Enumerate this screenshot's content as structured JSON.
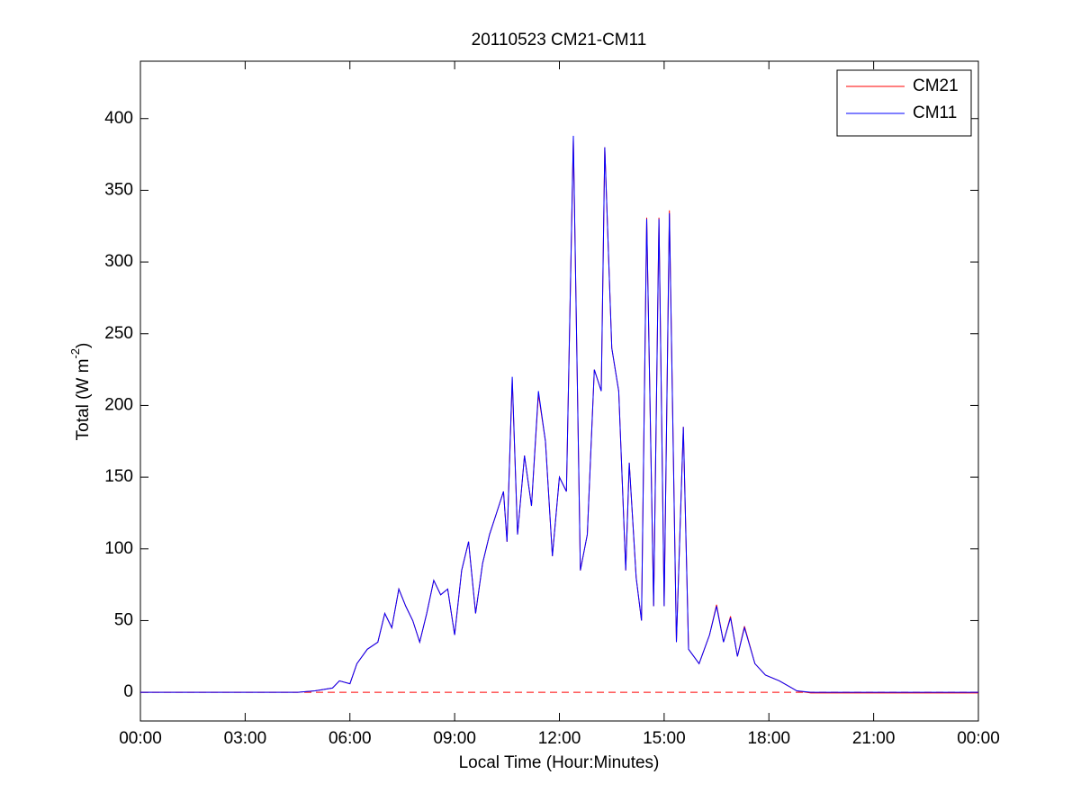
{
  "chart_data": {
    "type": "line",
    "title": "20110523 CM21-CM11",
    "xlabel": "Local Time (Hour:Minutes)",
    "ylabel": {
      "text": "Total (W m",
      "sup": "-2",
      "end": ")"
    },
    "x": [
      0,
      4.5,
      5.0,
      5.5,
      5.7,
      6.0,
      6.2,
      6.5,
      6.8,
      7.0,
      7.2,
      7.4,
      7.6,
      7.8,
      8.0,
      8.2,
      8.4,
      8.6,
      8.8,
      9.0,
      9.2,
      9.4,
      9.6,
      9.8,
      10.0,
      10.2,
      10.4,
      10.5,
      10.65,
      10.8,
      11.0,
      11.2,
      11.4,
      11.6,
      11.8,
      12.0,
      12.2,
      12.4,
      12.6,
      12.8,
      13.0,
      13.2,
      13.3,
      13.5,
      13.7,
      13.9,
      14.0,
      14.2,
      14.35,
      14.5,
      14.7,
      14.85,
      15.0,
      15.15,
      15.35,
      15.55,
      15.7,
      16.0,
      16.3,
      16.5,
      16.7,
      16.9,
      17.1,
      17.3,
      17.6,
      17.9,
      18.3,
      18.8,
      19.2,
      24
    ],
    "series": [
      {
        "name": "CM21",
        "color": "#ff0000",
        "values": [
          0,
          0,
          1,
          3,
          8,
          6,
          20,
          30,
          35,
          55,
          45,
          72,
          60,
          50,
          35,
          55,
          78,
          68,
          72,
          40,
          85,
          105,
          55,
          90,
          110,
          125,
          140,
          105,
          218,
          110,
          165,
          130,
          208,
          175,
          95,
          150,
          140,
          386,
          85,
          110,
          225,
          210,
          380,
          240,
          210,
          85,
          160,
          80,
          50,
          331,
          60,
          331,
          60,
          336,
          35,
          185,
          30,
          20,
          40,
          61,
          35,
          53,
          25,
          46,
          20,
          12,
          8,
          1,
          -0.5,
          -0.5
        ]
      },
      {
        "name": "CM11",
        "color": "#0000ff",
        "values": [
          0,
          0,
          1,
          3,
          8,
          6,
          20,
          30,
          35,
          55,
          45,
          72,
          60,
          50,
          35,
          55,
          78,
          68,
          72,
          40,
          85,
          105,
          55,
          90,
          110,
          125,
          140,
          105,
          220,
          110,
          165,
          130,
          210,
          175,
          95,
          150,
          140,
          388,
          85,
          110,
          225,
          210,
          380,
          240,
          210,
          85,
          160,
          80,
          50,
          330,
          60,
          330,
          60,
          334,
          35,
          185,
          30,
          20,
          40,
          60,
          35,
          52,
          25,
          45,
          20,
          12,
          8,
          1,
          0,
          0
        ]
      }
    ],
    "reference_line": {
      "value": 0,
      "color": "#ff0000",
      "style": "dashed"
    },
    "xlim": [
      0,
      24
    ],
    "xticks": [
      {
        "value": 0,
        "label": "00:00"
      },
      {
        "value": 3,
        "label": "03:00"
      },
      {
        "value": 6,
        "label": "06:00"
      },
      {
        "value": 9,
        "label": "09:00"
      },
      {
        "value": 12,
        "label": "12:00"
      },
      {
        "value": 15,
        "label": "15:00"
      },
      {
        "value": 18,
        "label": "18:00"
      },
      {
        "value": 21,
        "label": "21:00"
      },
      {
        "value": 24,
        "label": "00:00"
      }
    ],
    "ylim": [
      -20,
      440
    ],
    "yticks": [
      0,
      50,
      100,
      150,
      200,
      250,
      300,
      350,
      400
    ],
    "grid": false,
    "legend": "northeast"
  }
}
